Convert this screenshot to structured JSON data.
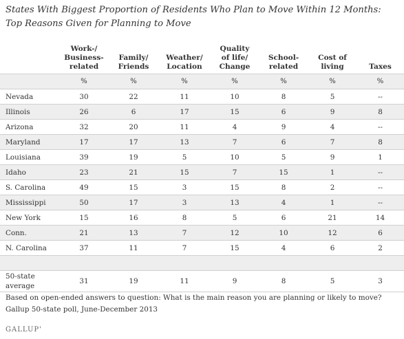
{
  "title": {
    "line1": "States With Biggest Proportion of Residents Who Plan to Move Within 12 Months:",
    "line2": "Top Reasons Given for Planning to Move"
  },
  "columns": [
    {
      "lines": [
        "Work-/",
        "Business-",
        "related"
      ]
    },
    {
      "lines": [
        "Family/",
        "Friends"
      ]
    },
    {
      "lines": [
        "Weather/",
        "Location"
      ]
    },
    {
      "lines": [
        "Quality",
        "of life/",
        "Change"
      ]
    },
    {
      "lines": [
        "School-",
        "related"
      ]
    },
    {
      "lines": [
        "Cost of",
        "living"
      ]
    },
    {
      "lines": [
        "Taxes"
      ]
    }
  ],
  "unit_label": "%",
  "rows": [
    {
      "state": "Nevada",
      "values": [
        "30",
        "22",
        "11",
        "10",
        "8",
        "5",
        "--"
      ]
    },
    {
      "state": "Illinois",
      "values": [
        "26",
        "6",
        "17",
        "15",
        "6",
        "9",
        "8"
      ]
    },
    {
      "state": "Arizona",
      "values": [
        "32",
        "20",
        "11",
        "4",
        "9",
        "4",
        "--"
      ]
    },
    {
      "state": "Maryland",
      "values": [
        "17",
        "17",
        "13",
        "7",
        "6",
        "7",
        "8"
      ]
    },
    {
      "state": "Louisiana",
      "values": [
        "39",
        "19",
        "5",
        "10",
        "5",
        "9",
        "1"
      ]
    },
    {
      "state": "Idaho",
      "values": [
        "23",
        "21",
        "15",
        "7",
        "15",
        "1",
        "--"
      ]
    },
    {
      "state": "S. Carolina",
      "values": [
        "49",
        "15",
        "3",
        "15",
        "8",
        "2",
        "--"
      ]
    },
    {
      "state": "Mississippi",
      "values": [
        "50",
        "17",
        "3",
        "13",
        "4",
        "1",
        "--"
      ]
    },
    {
      "state": "New York",
      "values": [
        "15",
        "16",
        "8",
        "5",
        "6",
        "21",
        "14"
      ]
    },
    {
      "state": "Conn.",
      "values": [
        "21",
        "13",
        "7",
        "12",
        "10",
        "12",
        "6"
      ]
    },
    {
      "state": "N. Carolina",
      "values": [
        "37",
        "11",
        "7",
        "15",
        "4",
        "6",
        "2"
      ]
    }
  ],
  "average": {
    "label_line1": "50-state",
    "label_line2": "average",
    "values": [
      "31",
      "19",
      "11",
      "9",
      "8",
      "5",
      "3"
    ]
  },
  "notes": {
    "line1": "Based on open-ended answers to question: What is the main reason you are planning or likely to move?",
    "line2": "Gallup 50-state poll, June-December 2013"
  },
  "logo": "GALLUP'"
}
